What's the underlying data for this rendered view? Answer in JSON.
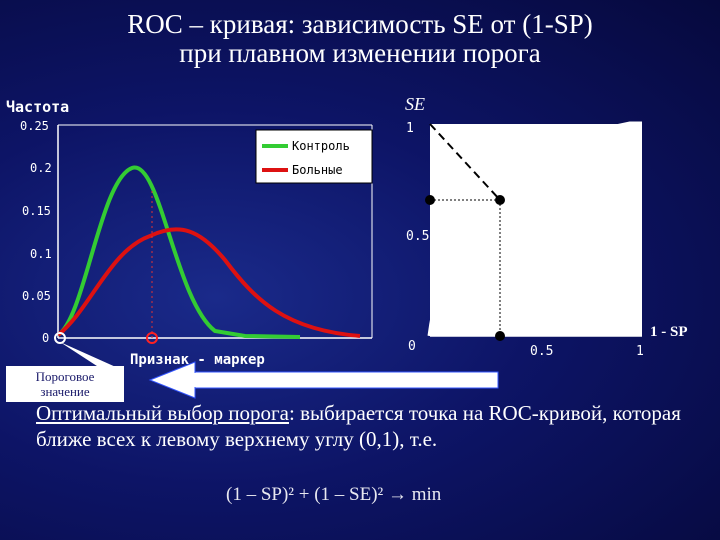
{
  "title": {
    "line1": "ROC – кривая: зависимость SE от (1-SP)",
    "line2": "при плавном изменении порога"
  },
  "left_chart": {
    "ylabel": "Частота",
    "xlabel": "Признак - маркер",
    "yticks": [
      "0.25",
      "0.2",
      "0.15",
      "0.1",
      "0.05",
      "0"
    ],
    "legend": [
      {
        "name": "Контроль",
        "color": "#33cc33"
      },
      {
        "name": "Больные",
        "color": "#dd1111"
      }
    ]
  },
  "right_chart": {
    "ylabel": "SE",
    "xlabel": "1 - SP",
    "yticks": [
      "1",
      "0.5",
      "0"
    ],
    "xticks": [
      "0.5",
      "1"
    ]
  },
  "callout": {
    "line1": "Пороговое",
    "line2": "значение"
  },
  "bottom_text": {
    "underlined": "Оптимальный выбор порога",
    "rest": ": выбирается точка на ROC-кривой, которая ближе всех к левому верхнему углу (0,1), т.е."
  },
  "formula": "(1 – SP)² + (1 – SE)² → min",
  "chart_data": [
    {
      "type": "line",
      "ylabel": "Частота",
      "xlabel": "Признак - маркер",
      "ylim": [
        0,
        0.25
      ],
      "series": [
        {
          "name": "Контроль",
          "peak": 0.2
        },
        {
          "name": "Больные",
          "peak": 0.135
        }
      ]
    },
    {
      "type": "line",
      "ylabel": "SE",
      "xlabel": "1 - SP",
      "xlim": [
        0,
        1
      ],
      "ylim": [
        0,
        1
      ]
    }
  ]
}
